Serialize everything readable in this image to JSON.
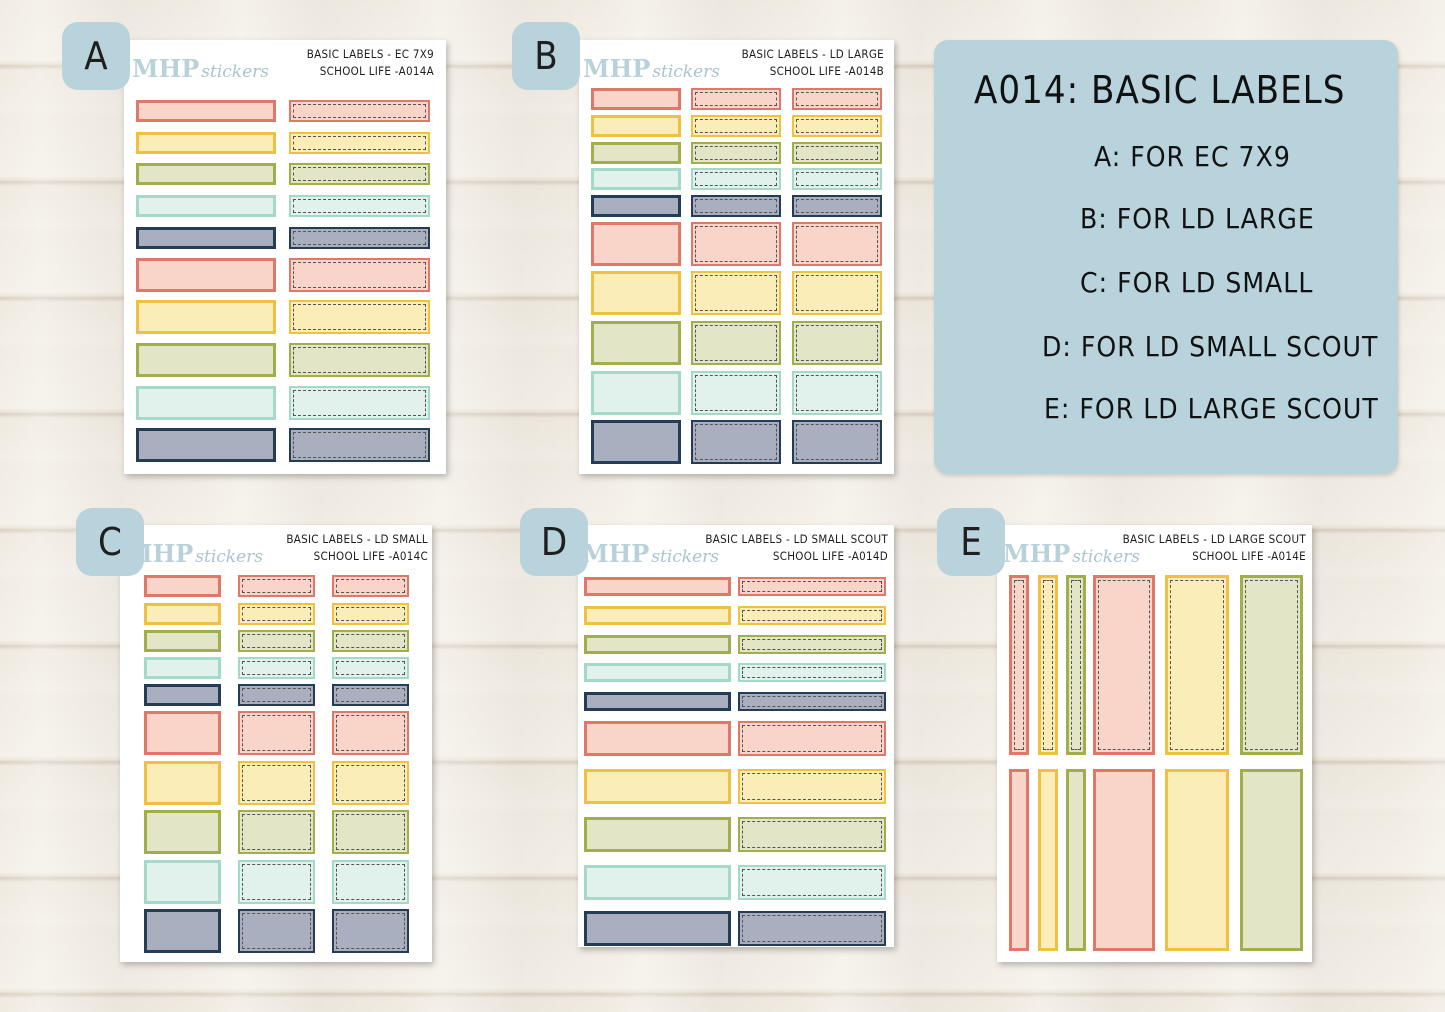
{
  "brand": {
    "main": "MHP",
    "script": "stickers"
  },
  "info": {
    "title": "A014: BASIC LABELS",
    "lines": [
      "A: FOR EC 7X9",
      "B: FOR LD LARGE",
      "C: FOR LD SMALL",
      "D: FOR LD SMALL SCOUT",
      "E: FOR LD LARGE SCOUT"
    ]
  },
  "colors": {
    "coral_border": "#e0786a",
    "coral_fill": "#f9d4c9",
    "yellow_border": "#efc142",
    "yellow_fill": "#fbedb8",
    "olive_border": "#a2ad4b",
    "olive_fill": "#e2e6c6",
    "mint_border": "#a4d8c7",
    "mint_fill": "#e1f1ec",
    "navy_border": "#243c56",
    "navy_fill": "#a9afbe",
    "badge": "#b8d3dc"
  },
  "sheets": [
    {
      "badge": "A",
      "title1": "BASIC LABELS - EC 7X9",
      "title2": "SCHOOL LIFE -A014A"
    },
    {
      "badge": "B",
      "title1": "BASIC LABELS - LD LARGE",
      "title2": "SCHOOL LIFE -A014B"
    },
    {
      "badge": "C",
      "title1": "BASIC LABELS - LD SMALL",
      "title2": "SCHOOL LIFE -A014C"
    },
    {
      "badge": "D",
      "title1": "BASIC LABELS - LD SMALL SCOUT",
      "title2": "SCHOOL LIFE -A014D"
    },
    {
      "badge": "E",
      "title1": "BASIC LABELS - LD LARGE SCOUT",
      "title2": "SCHOOL LIFE -A014E"
    }
  ]
}
